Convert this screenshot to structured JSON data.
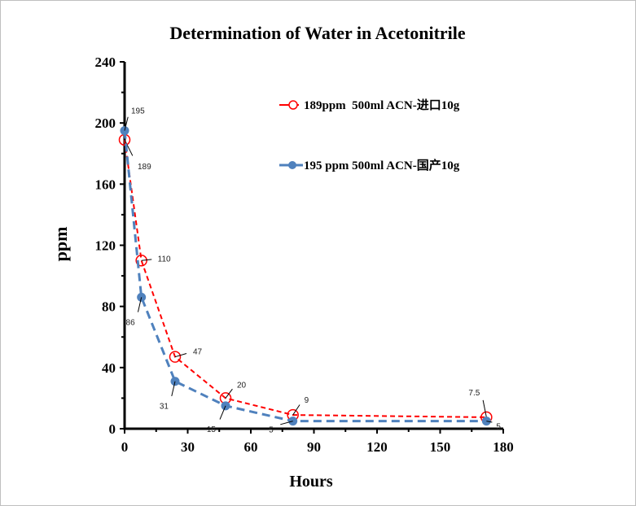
{
  "chart_data": {
    "type": "line",
    "title": "Determination of Water in Acetonitrile",
    "xlabel": "Hours",
    "ylabel": "ppm",
    "xlim": [
      0,
      180
    ],
    "ylim": [
      0,
      240
    ],
    "xticks": [
      0,
      30,
      60,
      90,
      120,
      150,
      180
    ],
    "yticks": [
      0,
      40,
      80,
      120,
      160,
      200,
      240
    ],
    "grid": false,
    "legend_position": "top-right",
    "series": [
      {
        "name": "189ppm  500ml ACN-进口10g",
        "color": "#ff0000",
        "marker": "open-circle",
        "x": [
          0,
          8,
          24,
          48,
          80,
          172
        ],
        "values": [
          189,
          110,
          47,
          20,
          9,
          7.5
        ],
        "labels": [
          "189",
          "110",
          "47",
          "20",
          "9",
          "7.5"
        ]
      },
      {
        "name": "195 ppm 500ml ACN-国产10g",
        "color": "#4f81bd",
        "marker": "filled-circle",
        "x": [
          0,
          8,
          24,
          48,
          80,
          172
        ],
        "values": [
          195,
          86,
          31,
          15,
          5,
          5
        ],
        "labels": [
          "195",
          "86",
          "31",
          "15",
          "5",
          "5"
        ]
      }
    ]
  }
}
